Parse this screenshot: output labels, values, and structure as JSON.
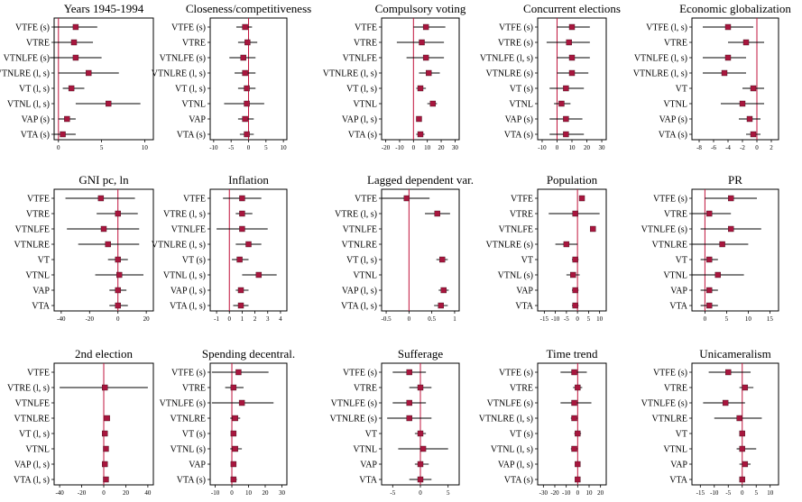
{
  "chart_data": [
    {
      "type": "scatter",
      "title": "Years 1945-1994",
      "rows": [
        {
          "label": "VTFE (s)",
          "est": 2,
          "lo": -0.5,
          "hi": 4.5
        },
        {
          "label": "VTRE",
          "est": 1.8,
          "lo": -0.5,
          "hi": 4
        },
        {
          "label": "VTNLFE (s)",
          "est": 2,
          "lo": -1,
          "hi": 5
        },
        {
          "label": "VTNLRE (l, s)",
          "est": 3.5,
          "lo": 0,
          "hi": 7
        },
        {
          "label": "VT (l, s)",
          "est": 1.5,
          "lo": 0.5,
          "hi": 3
        },
        {
          "label": "VTNL (l, s)",
          "est": 5.8,
          "lo": 2,
          "hi": 9.5
        },
        {
          "label": "VAP (s)",
          "est": 1,
          "lo": 0,
          "hi": 2
        },
        {
          "label": "VTA (s)",
          "est": 0.5,
          "lo": -0.5,
          "hi": 2
        }
      ],
      "xlim": [
        -0.5,
        11
      ],
      "ticks": [
        0,
        5,
        10
      ],
      "ref": 0
    },
    {
      "type": "scatter",
      "title": "Closeness/competitiveness",
      "rows": [
        {
          "label": "VTFE (s)",
          "est": -1,
          "lo": -3.5,
          "hi": 1
        },
        {
          "label": "VTRE",
          "est": -0.3,
          "lo": -3,
          "hi": 2.5
        },
        {
          "label": "VTNLFE (s)",
          "est": -1.5,
          "lo": -5.5,
          "hi": 2
        },
        {
          "label": "VTNLRE (l, s)",
          "est": -1,
          "lo": -4,
          "hi": 2
        },
        {
          "label": "VT (l, s)",
          "est": -0.5,
          "lo": -3,
          "hi": 2
        },
        {
          "label": "VTNL",
          "est": -0.5,
          "lo": -7,
          "hi": 4.5
        },
        {
          "label": "VAP",
          "est": -1,
          "lo": -3,
          "hi": 1.5
        },
        {
          "label": "VTA (s)",
          "est": -0.5,
          "lo": -2.5,
          "hi": 1.5
        }
      ],
      "xlim": [
        -11,
        11
      ],
      "ticks": [
        -10,
        -5,
        0,
        5,
        10
      ],
      "ref": 0
    },
    {
      "type": "scatter",
      "title": "Compulsory voting",
      "rows": [
        {
          "label": "VTFE",
          "est": 9,
          "lo": 0,
          "hi": 23
        },
        {
          "label": "VTRE",
          "est": 6,
          "lo": -12,
          "hi": 22
        },
        {
          "label": "VTNLFE",
          "est": 9,
          "lo": -5,
          "hi": 22
        },
        {
          "label": "VTNLRE (l, s)",
          "est": 11,
          "lo": 4,
          "hi": 19
        },
        {
          "label": "VT (l, s)",
          "est": 5,
          "lo": 2,
          "hi": 9
        },
        {
          "label": "VTNL",
          "est": 14,
          "lo": 10,
          "hi": 17
        },
        {
          "label": "VAP (l, s)",
          "est": 4,
          "lo": 2,
          "hi": 6
        },
        {
          "label": "VTA (s)",
          "est": 5,
          "lo": 2,
          "hi": 8
        }
      ],
      "xlim": [
        -23,
        33
      ],
      "ticks": [
        -20,
        -10,
        0,
        10,
        20,
        30
      ],
      "ref": 0
    },
    {
      "type": "scatter",
      "title": "Concurrent elections",
      "rows": [
        {
          "label": "VTFE (s)",
          "est": 10,
          "lo": 0,
          "hi": 22
        },
        {
          "label": "VTRE (s)",
          "est": 8,
          "lo": -7,
          "hi": 22
        },
        {
          "label": "VTNLFE (l, s)",
          "est": 10,
          "lo": 0,
          "hi": 22
        },
        {
          "label": "VTNLRE (s)",
          "est": 10,
          "lo": 0,
          "hi": 21
        },
        {
          "label": "VT (s)",
          "est": 6,
          "lo": -5,
          "hi": 18
        },
        {
          "label": "VTNL",
          "est": 3,
          "lo": -2,
          "hi": 9
        },
        {
          "label": "VAP (s)",
          "est": 6,
          "lo": -5,
          "hi": 17
        },
        {
          "label": "VTA (s)",
          "est": 6,
          "lo": -5,
          "hi": 18
        }
      ],
      "xlim": [
        -13,
        33
      ],
      "ticks": [
        -10,
        0,
        10,
        20,
        30
      ],
      "ref": 0
    },
    {
      "type": "scatter",
      "title": "Economic globalization",
      "rows": [
        {
          "label": "VTFE (l, s)",
          "est": -4,
          "lo": -7.5,
          "hi": -0.5
        },
        {
          "label": "VTRE",
          "est": -1.5,
          "lo": -4,
          "hi": 1
        },
        {
          "label": "VTNLFE (l, s)",
          "est": -4,
          "lo": -7.5,
          "hi": -1.5
        },
        {
          "label": "VTNLRE (l, s)",
          "est": -4.5,
          "lo": -7.5,
          "hi": -1.5
        },
        {
          "label": "VT",
          "est": -0.5,
          "lo": -2,
          "hi": 1
        },
        {
          "label": "VTNL",
          "est": -2,
          "lo": -5,
          "hi": 1
        },
        {
          "label": "VAP (s)",
          "est": -1,
          "lo": -2.5,
          "hi": 0.5
        },
        {
          "label": "VTA (s)",
          "est": -0.5,
          "lo": -1.5,
          "hi": 0.5
        }
      ],
      "xlim": [
        -9,
        3
      ],
      "ticks": [
        -8,
        -6,
        -4,
        -2,
        0,
        2
      ],
      "ref": 0
    },
    {
      "type": "scatter",
      "title": "GNI pc, ln",
      "rows": [
        {
          "label": "VTFE",
          "est": -12,
          "lo": -37,
          "hi": 12
        },
        {
          "label": "VTRE",
          "est": 0,
          "lo": -15,
          "hi": 14
        },
        {
          "label": "VTNLFE",
          "est": -10,
          "lo": -36,
          "hi": 15
        },
        {
          "label": "VTNLRE",
          "est": -7,
          "lo": -28,
          "hi": 15
        },
        {
          "label": "VT",
          "est": 0,
          "lo": -7,
          "hi": 7
        },
        {
          "label": "VTNL",
          "est": 1,
          "lo": -16,
          "hi": 18
        },
        {
          "label": "VAP",
          "est": 0,
          "lo": -6,
          "hi": 6
        },
        {
          "label": "VTA",
          "est": 0,
          "lo": -6,
          "hi": 7
        }
      ],
      "xlim": [
        -45,
        25
      ],
      "ticks": [
        -40,
        -20,
        0,
        20
      ],
      "ref": 0
    },
    {
      "type": "scatter",
      "title": "Inflation",
      "rows": [
        {
          "label": "VTFE",
          "est": 1,
          "lo": -0.5,
          "hi": 2.5
        },
        {
          "label": "VTRE (l, s)",
          "est": 1,
          "lo": 0.5,
          "hi": 1.8
        },
        {
          "label": "VTNLFE",
          "est": 1,
          "lo": -1,
          "hi": 3
        },
        {
          "label": "VTNLRE (l, s)",
          "est": 1.5,
          "lo": 0.5,
          "hi": 2.5
        },
        {
          "label": "VT (s)",
          "est": 0.8,
          "lo": 0.2,
          "hi": 1.5
        },
        {
          "label": "VTNL (l, s)",
          "est": 2.3,
          "lo": 1,
          "hi": 3.7
        },
        {
          "label": "VAP (l, s)",
          "est": 0.9,
          "lo": 0.5,
          "hi": 1.5
        },
        {
          "label": "VTA (l, s)",
          "est": 0.9,
          "lo": 0.3,
          "hi": 1.5
        }
      ],
      "xlim": [
        -1.5,
        4.5
      ],
      "ticks": [
        -1,
        0,
        1,
        2,
        3,
        4
      ],
      "ref": 0
    },
    {
      "type": "scatter",
      "title": "Lagged dependent var.",
      "rows": [
        {
          "label": "VTFE",
          "est": -0.05,
          "lo": -0.6,
          "hi": 0.45
        },
        {
          "label": "VTRE (l, s)",
          "est": 0.62,
          "lo": 0.35,
          "hi": 0.9
        },
        {
          "label": "VTNLFE",
          "est": null,
          "lo": null,
          "hi": null
        },
        {
          "label": "VTNLRE",
          "est": null,
          "lo": null,
          "hi": null
        },
        {
          "label": "VT (l, s)",
          "est": 0.73,
          "lo": 0.6,
          "hi": 0.85
        },
        {
          "label": "VTNL",
          "est": null,
          "lo": null,
          "hi": null
        },
        {
          "label": "VAP (l, s)",
          "est": 0.76,
          "lo": 0.65,
          "hi": 0.87
        },
        {
          "label": "VTA (l, s)",
          "est": 0.7,
          "lo": 0.55,
          "hi": 0.85
        }
      ],
      "xlim": [
        -0.6,
        1.1
      ],
      "ticks": [
        -0.5,
        0,
        0.5,
        1
      ],
      "ref": 0
    },
    {
      "type": "scatter",
      "title": "Population",
      "rows": [
        {
          "label": "VTFE",
          "est": 2,
          "lo": null,
          "hi": null
        },
        {
          "label": "VTRE",
          "est": -1,
          "lo": -13,
          "hi": 10
        },
        {
          "label": "VTNLFE",
          "est": 7,
          "lo": null,
          "hi": null
        },
        {
          "label": "VTNLRE (s)",
          "est": -5,
          "lo": -10,
          "hi": 0
        },
        {
          "label": "VT",
          "est": -1,
          "lo": -2.5,
          "hi": 0.5
        },
        {
          "label": "VTNL (s)",
          "est": -2,
          "lo": -5,
          "hi": 1
        },
        {
          "label": "VAP",
          "est": -1,
          "lo": -2.5,
          "hi": 0.5
        },
        {
          "label": "VTA",
          "est": -1,
          "lo": -2.5,
          "hi": 0.5
        }
      ],
      "xlim": [
        -18,
        13
      ],
      "ticks": [
        -15,
        -10,
        -5,
        0,
        5,
        10
      ],
      "ref": 0
    },
    {
      "type": "scatter",
      "title": "PR",
      "rows": [
        {
          "label": "VTFE (s)",
          "est": 6,
          "lo": 0,
          "hi": 12
        },
        {
          "label": "VTRE",
          "est": 1,
          "lo": -3,
          "hi": 6
        },
        {
          "label": "VTNLFE (s)",
          "est": 6,
          "lo": -1,
          "hi": 13
        },
        {
          "label": "VTNLRE",
          "est": 4,
          "lo": -3,
          "hi": 10
        },
        {
          "label": "VT",
          "est": 1,
          "lo": -1,
          "hi": 3
        },
        {
          "label": "VTNL",
          "est": 3,
          "lo": -3,
          "hi": 9
        },
        {
          "label": "VAP",
          "est": 1,
          "lo": -1,
          "hi": 3
        },
        {
          "label": "VTA",
          "est": 1,
          "lo": -1,
          "hi": 3
        }
      ],
      "xlim": [
        -3,
        17
      ],
      "ticks": [
        0,
        5,
        10,
        15
      ],
      "ref": 0
    },
    {
      "type": "scatter",
      "title": "2nd election",
      "rows": [
        {
          "label": "VTFE",
          "est": null,
          "lo": null,
          "hi": null
        },
        {
          "label": "VTRE (l, s)",
          "est": 1,
          "lo": -40,
          "hi": 40
        },
        {
          "label": "VTNLFE",
          "est": null,
          "lo": null,
          "hi": null
        },
        {
          "label": "VTNLRE",
          "est": 3,
          "lo": null,
          "hi": null
        },
        {
          "label": "VT (l, s)",
          "est": 1,
          "lo": null,
          "hi": null
        },
        {
          "label": "VTNL",
          "est": 2,
          "lo": null,
          "hi": null
        },
        {
          "label": "VAP (l, s)",
          "est": 1,
          "lo": null,
          "hi": null
        },
        {
          "label": "VTA (l, s)",
          "est": 2,
          "lo": null,
          "hi": null
        }
      ],
      "xlim": [
        -45,
        45
      ],
      "ticks": [
        -40,
        -20,
        0,
        20,
        40
      ],
      "ref": 0
    },
    {
      "type": "scatter",
      "title": "Spending decentral.",
      "rows": [
        {
          "label": "VTFE (s)",
          "est": 4,
          "lo": -12,
          "hi": 22
        },
        {
          "label": "VTRE",
          "est": 1,
          "lo": -4,
          "hi": 7
        },
        {
          "label": "VTNLFE (s)",
          "est": 6,
          "lo": -12,
          "hi": 25
        },
        {
          "label": "VTNLRE",
          "est": 2,
          "lo": -1,
          "hi": 5
        },
        {
          "label": "VT (s)",
          "est": 1,
          "lo": 0,
          "hi": 2
        },
        {
          "label": "VTNL (s)",
          "est": 2,
          "lo": -1,
          "hi": 6
        },
        {
          "label": "VAP",
          "est": 1,
          "lo": 0,
          "hi": 2
        },
        {
          "label": "VTA (s)",
          "est": 1,
          "lo": 0,
          "hi": 3
        }
      ],
      "xlim": [
        -13,
        33
      ],
      "ticks": [
        -10,
        0,
        10,
        20,
        30
      ],
      "ref": 0
    },
    {
      "type": "scatter",
      "title": "Sufferage",
      "rows": [
        {
          "label": "VTFE (s)",
          "est": -2,
          "lo": -5,
          "hi": 1
        },
        {
          "label": "VTRE",
          "est": 0,
          "lo": -2,
          "hi": 2
        },
        {
          "label": "VTNLFE (s)",
          "est": -2,
          "lo": -5,
          "hi": 1
        },
        {
          "label": "VTNLRE (s)",
          "est": -2,
          "lo": -6,
          "hi": 2
        },
        {
          "label": "VT",
          "est": 0,
          "lo": -1,
          "hi": 1
        },
        {
          "label": "VTNL",
          "est": 0.5,
          "lo": -4,
          "hi": 5
        },
        {
          "label": "VAP",
          "est": 0,
          "lo": -1,
          "hi": 1.5
        },
        {
          "label": "VTA",
          "est": 0,
          "lo": -2,
          "hi": 2
        }
      ],
      "xlim": [
        -7,
        7
      ],
      "ticks": [
        -5,
        0,
        5
      ],
      "ref": 0
    },
    {
      "type": "scatter",
      "title": "Time trend",
      "rows": [
        {
          "label": "VTFE (s)",
          "est": -3,
          "lo": -15,
          "hi": 8
        },
        {
          "label": "VTRE",
          "est": 0,
          "lo": -4,
          "hi": 4
        },
        {
          "label": "VTNLFE (s)",
          "est": -3,
          "lo": -15,
          "hi": 12
        },
        {
          "label": "VTNLRE (l, s)",
          "est": -3,
          "lo": -6,
          "hi": 0
        },
        {
          "label": "VT (s)",
          "est": 0,
          "lo": -3,
          "hi": 3
        },
        {
          "label": "VTNL (l, s)",
          "est": -3,
          "lo": -6,
          "hi": 0
        },
        {
          "label": "VAP (l, s)",
          "est": 0,
          "lo": -2,
          "hi": 2
        },
        {
          "label": "VTA (s)",
          "est": 0,
          "lo": -1,
          "hi": 1
        }
      ],
      "xlim": [
        -35,
        25
      ],
      "ticks": [
        -30,
        -20,
        -10,
        0,
        10,
        20
      ],
      "ref": 0
    },
    {
      "type": "scatter",
      "title": "Unicameralism",
      "rows": [
        {
          "label": "VTFE (s)",
          "est": -5,
          "lo": -12,
          "hi": 3
        },
        {
          "label": "VTRE",
          "est": 1,
          "lo": -1,
          "hi": 4
        },
        {
          "label": "VTNLFE (s)",
          "est": -6,
          "lo": -14,
          "hi": 1
        },
        {
          "label": "VTNLRE",
          "est": -1,
          "lo": -10,
          "hi": 7
        },
        {
          "label": "VT",
          "est": 0,
          "lo": -1,
          "hi": 1
        },
        {
          "label": "VTNL",
          "est": 0,
          "lo": -2,
          "hi": 5
        },
        {
          "label": "VAP",
          "est": 1,
          "lo": -1,
          "hi": 3
        },
        {
          "label": "VTA",
          "est": 0,
          "lo": -1,
          "hi": 1
        }
      ],
      "xlim": [
        -18,
        13
      ],
      "ticks": [
        -15,
        -10,
        -5,
        0,
        5,
        10
      ],
      "ref": 0
    }
  ],
  "colors": {
    "marker": "#a8163e",
    "refline": "#c0133c",
    "axis": "#000000"
  }
}
